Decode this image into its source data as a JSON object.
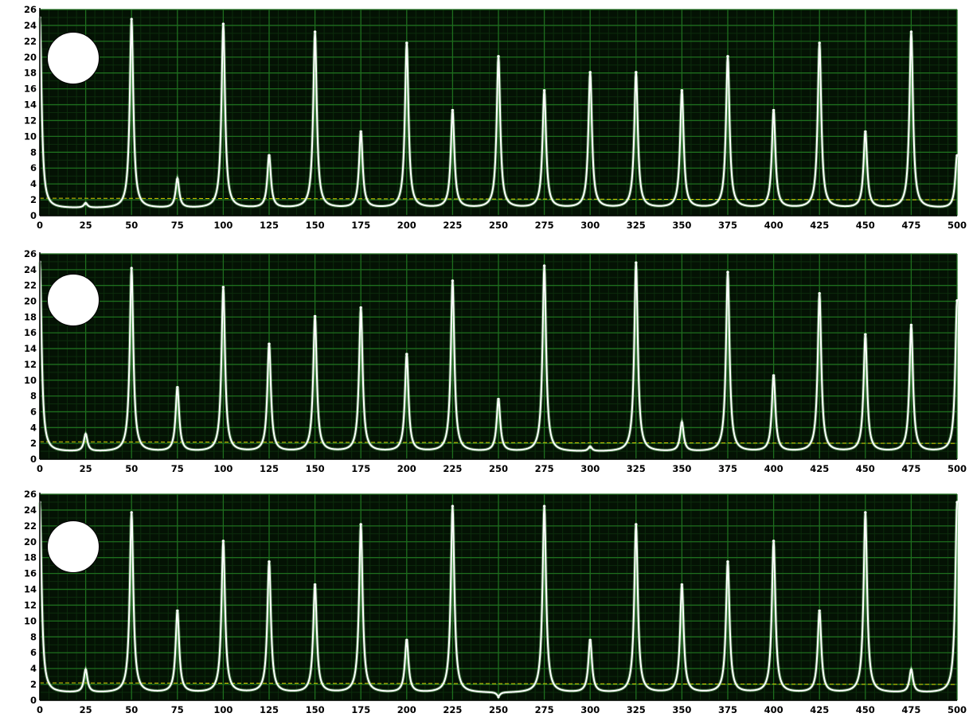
{
  "colors": {
    "plot_background": "#041204",
    "major_grid": "#1e6e1e",
    "minor_grid": "#0c2c0c",
    "signal_line": "#ffffff",
    "signal_glow": "#8fd98f",
    "threshold_line": "#d8d000",
    "axis_text": "#000000"
  },
  "chart_data": [
    {
      "type": "line",
      "title": "",
      "xlabel": "",
      "ylabel": "",
      "xlim": [
        0,
        500
      ],
      "ylim": [
        0,
        26
      ],
      "x_ticks": [
        0,
        25,
        50,
        75,
        100,
        125,
        150,
        175,
        200,
        225,
        250,
        275,
        300,
        325,
        350,
        375,
        400,
        425,
        450,
        475,
        500
      ],
      "y_ticks": [
        0,
        2,
        4,
        6,
        8,
        10,
        12,
        14,
        16,
        18,
        20,
        22,
        24,
        26
      ],
      "grid": true,
      "marker": "white-circle",
      "threshold": {
        "start": 2.2,
        "end": 2.0
      },
      "baseline": 0.9,
      "peaks": [
        {
          "x": 0,
          "y": 25.0
        },
        {
          "x": 25,
          "y": 1.5
        },
        {
          "x": 50,
          "y": 24.8
        },
        {
          "x": 75,
          "y": 4.6
        },
        {
          "x": 100,
          "y": 24.2
        },
        {
          "x": 125,
          "y": 7.6
        },
        {
          "x": 150,
          "y": 23.2
        },
        {
          "x": 175,
          "y": 10.6
        },
        {
          "x": 200,
          "y": 21.8
        },
        {
          "x": 225,
          "y": 13.3
        },
        {
          "x": 250,
          "y": 20.1
        },
        {
          "x": 275,
          "y": 15.8
        },
        {
          "x": 300,
          "y": 18.1
        },
        {
          "x": 325,
          "y": 18.1
        },
        {
          "x": 350,
          "y": 15.8
        },
        {
          "x": 375,
          "y": 20.1
        },
        {
          "x": 400,
          "y": 13.3
        },
        {
          "x": 425,
          "y": 21.8
        },
        {
          "x": 450,
          "y": 10.6
        },
        {
          "x": 475,
          "y": 23.2
        },
        {
          "x": 500,
          "y": 7.6
        }
      ]
    },
    {
      "type": "line",
      "title": "",
      "xlabel": "",
      "ylabel": "",
      "xlim": [
        0,
        500
      ],
      "ylim": [
        0,
        26
      ],
      "x_ticks": [
        0,
        25,
        50,
        75,
        100,
        125,
        150,
        175,
        200,
        225,
        250,
        275,
        300,
        325,
        350,
        375,
        400,
        425,
        450,
        475,
        500
      ],
      "y_ticks": [
        0,
        2,
        4,
        6,
        8,
        10,
        12,
        14,
        16,
        18,
        20,
        22,
        24,
        26
      ],
      "grid": true,
      "marker": "white-circle",
      "threshold": {
        "start": 2.2,
        "end": 2.0
      },
      "baseline": 0.9,
      "peaks": [
        {
          "x": 0,
          "y": 25.0
        },
        {
          "x": 25,
          "y": 3.1
        },
        {
          "x": 50,
          "y": 24.2
        },
        {
          "x": 75,
          "y": 9.1
        },
        {
          "x": 100,
          "y": 21.8
        },
        {
          "x": 125,
          "y": 14.6
        },
        {
          "x": 150,
          "y": 18.1
        },
        {
          "x": 175,
          "y": 19.2
        },
        {
          "x": 200,
          "y": 13.3
        },
        {
          "x": 225,
          "y": 22.6
        },
        {
          "x": 250,
          "y": 7.6
        },
        {
          "x": 275,
          "y": 24.5
        },
        {
          "x": 300,
          "y": 1.5
        },
        {
          "x": 325,
          "y": 24.9
        },
        {
          "x": 350,
          "y": 4.6
        },
        {
          "x": 375,
          "y": 23.7
        },
        {
          "x": 400,
          "y": 10.6
        },
        {
          "x": 425,
          "y": 21.0
        },
        {
          "x": 450,
          "y": 15.8
        },
        {
          "x": 475,
          "y": 17.0
        },
        {
          "x": 500,
          "y": 20.1
        }
      ]
    },
    {
      "type": "line",
      "title": "",
      "xlabel": "",
      "ylabel": "",
      "xlim": [
        0,
        500
      ],
      "ylim": [
        0,
        26
      ],
      "x_ticks": [
        0,
        25,
        50,
        75,
        100,
        125,
        150,
        175,
        200,
        225,
        250,
        275,
        300,
        325,
        350,
        375,
        400,
        425,
        450,
        475,
        500
      ],
      "y_ticks": [
        0,
        2,
        4,
        6,
        8,
        10,
        12,
        14,
        16,
        18,
        20,
        22,
        24,
        26
      ],
      "grid": true,
      "marker": "white-circle",
      "threshold": {
        "start": 2.2,
        "end": 2.0
      },
      "baseline": 0.9,
      "peaks": [
        {
          "x": 0,
          "y": 25.0
        },
        {
          "x": 25,
          "y": 3.8
        },
        {
          "x": 50,
          "y": 23.7
        },
        {
          "x": 75,
          "y": 11.3
        },
        {
          "x": 100,
          "y": 20.1
        },
        {
          "x": 125,
          "y": 17.5
        },
        {
          "x": 150,
          "y": 14.6
        },
        {
          "x": 175,
          "y": 22.2
        },
        {
          "x": 200,
          "y": 7.6
        },
        {
          "x": 225,
          "y": 24.5
        },
        {
          "x": 250,
          "y": 0.4
        },
        {
          "x": 275,
          "y": 24.5
        },
        {
          "x": 300,
          "y": 7.6
        },
        {
          "x": 325,
          "y": 22.2
        },
        {
          "x": 350,
          "y": 14.6
        },
        {
          "x": 375,
          "y": 17.5
        },
        {
          "x": 400,
          "y": 20.1
        },
        {
          "x": 425,
          "y": 11.3
        },
        {
          "x": 450,
          "y": 23.7
        },
        {
          "x": 475,
          "y": 3.8
        },
        {
          "x": 500,
          "y": 25.0
        }
      ]
    }
  ]
}
